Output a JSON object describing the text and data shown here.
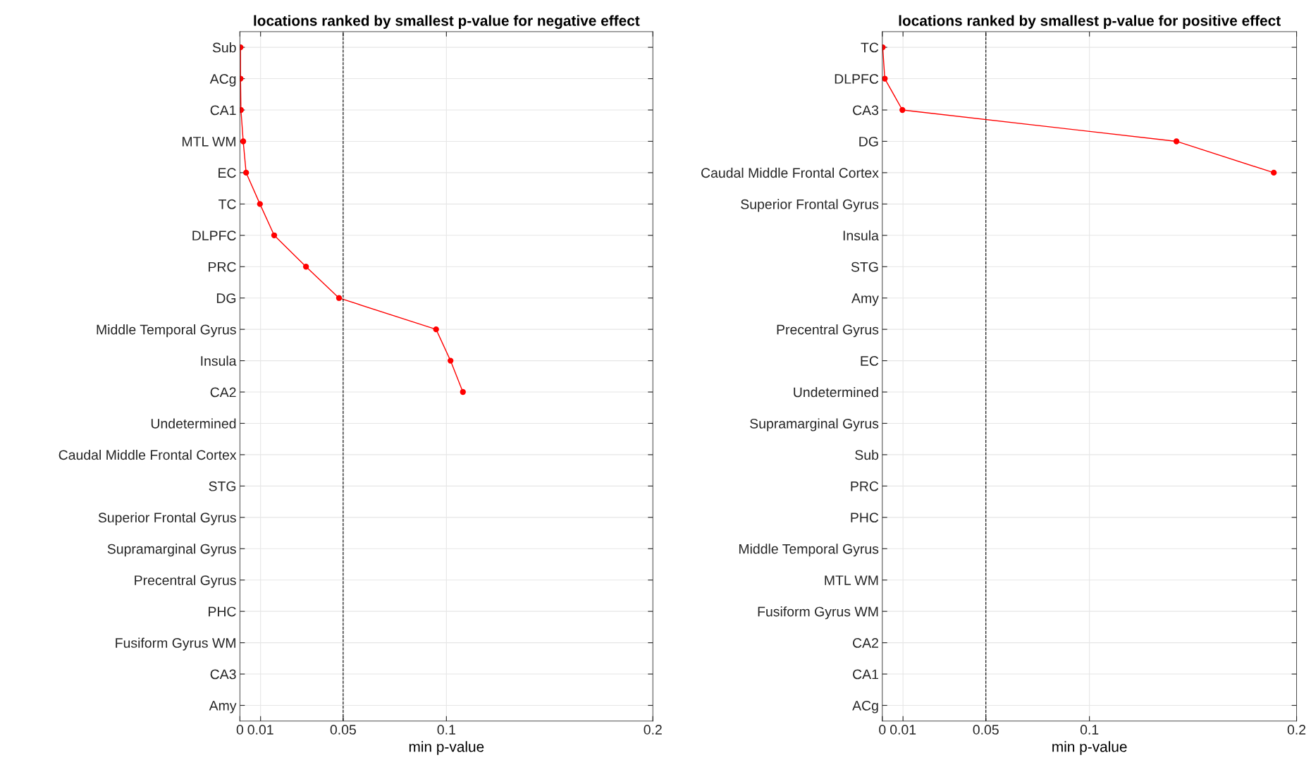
{
  "chart_data": [
    {
      "type": "line",
      "orientation": "horizontal",
      "title": "locations ranked by smallest p-value for negative effect",
      "xlabel": "min p-value",
      "categories": [
        "Sub",
        "ACg",
        "CA1",
        "MTL WM",
        "EC",
        "TC",
        "DLPFC",
        "PRC",
        "DG",
        "Middle Temporal Gyrus",
        "Insula",
        "CA2",
        "Undetermined",
        "Caudal Middle Frontal Cortex",
        "STG",
        "Superior Frontal Gyrus",
        "Supramarginal Gyrus",
        "Precentral Gyrus",
        "PHC",
        "Fusiform Gyrus WM",
        "CA3",
        "Amy"
      ],
      "series": [
        {
          "color": "#ff0000",
          "values": [
            0.0003,
            0.0003,
            0.0005,
            0.0016,
            0.003,
            0.0097,
            0.0166,
            0.032,
            0.048,
            0.095,
            0.102,
            0.108,
            null,
            null,
            null,
            null,
            null,
            null,
            null,
            null,
            null,
            null
          ]
        }
      ],
      "xlim": [
        0,
        0.2
      ],
      "xticks": [
        0,
        0.01,
        0.05,
        0.1,
        0.2
      ],
      "grid": true,
      "marker": "circle",
      "line_style": "solid",
      "ref_lines": [
        {
          "axis": "x",
          "value": 0.05,
          "color": "#000000",
          "line_style": "dashed"
        }
      ]
    },
    {
      "type": "line",
      "orientation": "horizontal",
      "title": "locations ranked by smallest p-value for positive effect",
      "xlabel": "min p-value",
      "categories": [
        "TC",
        "DLPFC",
        "CA3",
        "DG",
        "Caudal Middle Frontal Cortex",
        "Superior Frontal Gyrus",
        "Insula",
        "STG",
        "Amy",
        "Precentral Gyrus",
        "EC",
        "Undetermined",
        "Supramarginal Gyrus",
        "Sub",
        "PRC",
        "PHC",
        "Middle Temporal Gyrus",
        "MTL WM",
        "Fusiform Gyrus WM",
        "CA2",
        "CA1",
        "ACg"
      ],
      "series": [
        {
          "color": "#ff0000",
          "values": [
            0.0002,
            0.0012,
            0.0097,
            0.142,
            0.189,
            null,
            null,
            null,
            null,
            null,
            null,
            null,
            null,
            null,
            null,
            null,
            null,
            null,
            null,
            null,
            null,
            null
          ]
        }
      ],
      "xlim": [
        0,
        0.2
      ],
      "xticks": [
        0,
        0.01,
        0.05,
        0.1,
        0.2
      ],
      "grid": true,
      "marker": "circle",
      "line_style": "solid",
      "ref_lines": [
        {
          "axis": "x",
          "value": 0.05,
          "color": "#000000",
          "line_style": "dashed"
        }
      ]
    }
  ]
}
